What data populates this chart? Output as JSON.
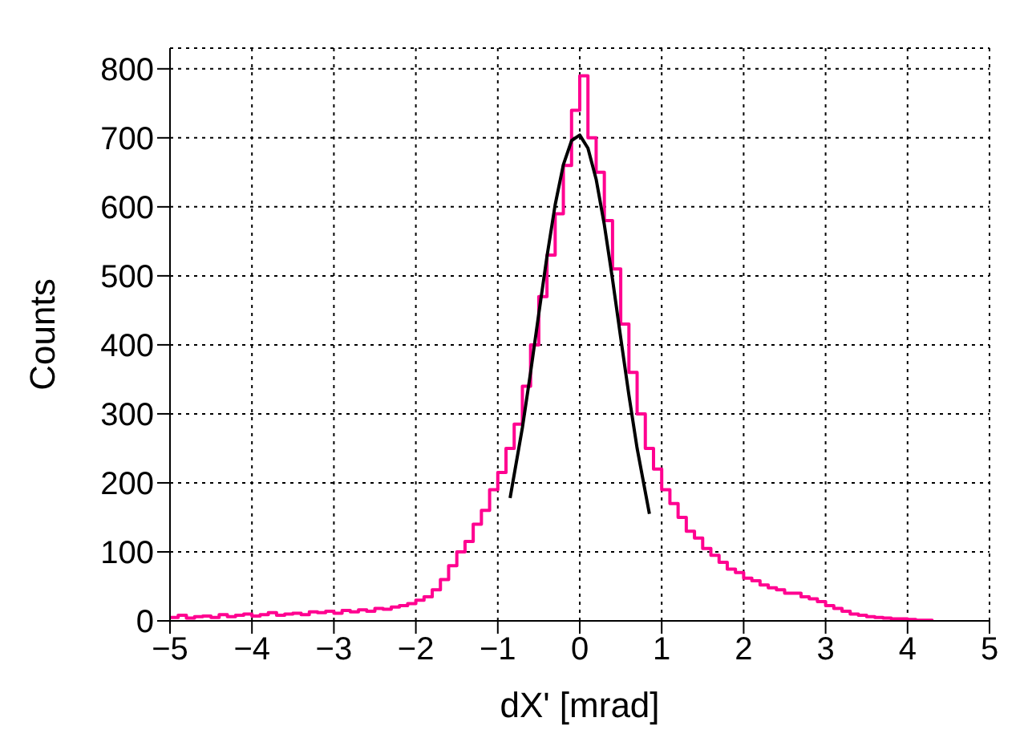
{
  "chart_data": {
    "type": "line",
    "xlabel": "dX' [mrad]",
    "ylabel": "Counts",
    "xlim": [
      -5,
      5
    ],
    "xticks": [
      -5,
      -4,
      -3,
      -2,
      -1,
      0,
      1,
      2,
      3,
      4,
      5
    ],
    "ylim": [
      0,
      830
    ],
    "yticks": [
      0,
      100,
      200,
      300,
      400,
      500,
      600,
      700,
      800
    ],
    "grid": true,
    "legend": false,
    "marker": "none",
    "series": [
      {
        "type": "step",
        "color": "#ff0090",
        "x": [
          -5.0,
          -4.9,
          -4.8,
          -4.7,
          -4.6,
          -4.5,
          -4.4,
          -4.3,
          -4.2,
          -4.1,
          -4.0,
          -3.9,
          -3.8,
          -3.7,
          -3.6,
          -3.5,
          -3.4,
          -3.3,
          -3.2,
          -3.1,
          -3.0,
          -2.9,
          -2.8,
          -2.7,
          -2.6,
          -2.5,
          -2.4,
          -2.3,
          -2.2,
          -2.1,
          -2.0,
          -1.9,
          -1.8,
          -1.7,
          -1.6,
          -1.5,
          -1.4,
          -1.3,
          -1.2,
          -1.1,
          -1.0,
          -0.9,
          -0.8,
          -0.7,
          -0.6,
          -0.5,
          -0.4,
          -0.3,
          -0.2,
          -0.1,
          0.0,
          0.1,
          0.2,
          0.3,
          0.4,
          0.5,
          0.6,
          0.7,
          0.8,
          0.9,
          1.0,
          1.1,
          1.2,
          1.3,
          1.4,
          1.5,
          1.6,
          1.7,
          1.8,
          1.9,
          2.0,
          2.1,
          2.2,
          2.3,
          2.4,
          2.5,
          2.6,
          2.7,
          2.8,
          2.9,
          3.0,
          3.1,
          3.2,
          3.3,
          3.4,
          3.5,
          3.6,
          3.7,
          3.8,
          3.9,
          4.0,
          4.1,
          4.2,
          4.3
        ],
        "values": [
          5,
          8,
          4,
          6,
          7,
          5,
          9,
          6,
          8,
          10,
          7,
          9,
          12,
          8,
          10,
          11,
          9,
          13,
          12,
          14,
          11,
          15,
          13,
          16,
          14,
          18,
          17,
          20,
          22,
          25,
          30,
          35,
          45,
          60,
          80,
          100,
          115,
          140,
          160,
          190,
          215,
          250,
          285,
          340,
          400,
          470,
          530,
          590,
          660,
          740,
          790,
          700,
          650,
          580,
          510,
          430,
          360,
          300,
          250,
          220,
          190,
          170,
          150,
          130,
          120,
          105,
          95,
          85,
          75,
          70,
          62,
          58,
          52,
          48,
          45,
          40,
          40,
          35,
          32,
          28,
          22,
          18,
          14,
          10,
          8,
          6,
          5,
          4,
          3,
          3,
          2,
          1,
          1,
          0
        ]
      },
      {
        "type": "line",
        "color": "#000000",
        "x": [
          -0.85,
          -0.7,
          -0.6,
          -0.5,
          -0.4,
          -0.3,
          -0.2,
          -0.1,
          0,
          0.1,
          0.2,
          0.3,
          0.4,
          0.5,
          0.6,
          0.7,
          0.85
        ],
        "values": [
          178,
          280,
          360,
          445,
          528,
          603,
          661,
          696,
          704,
          685,
          640,
          574,
          495,
          410,
          327,
          250,
          155
        ]
      }
    ]
  }
}
